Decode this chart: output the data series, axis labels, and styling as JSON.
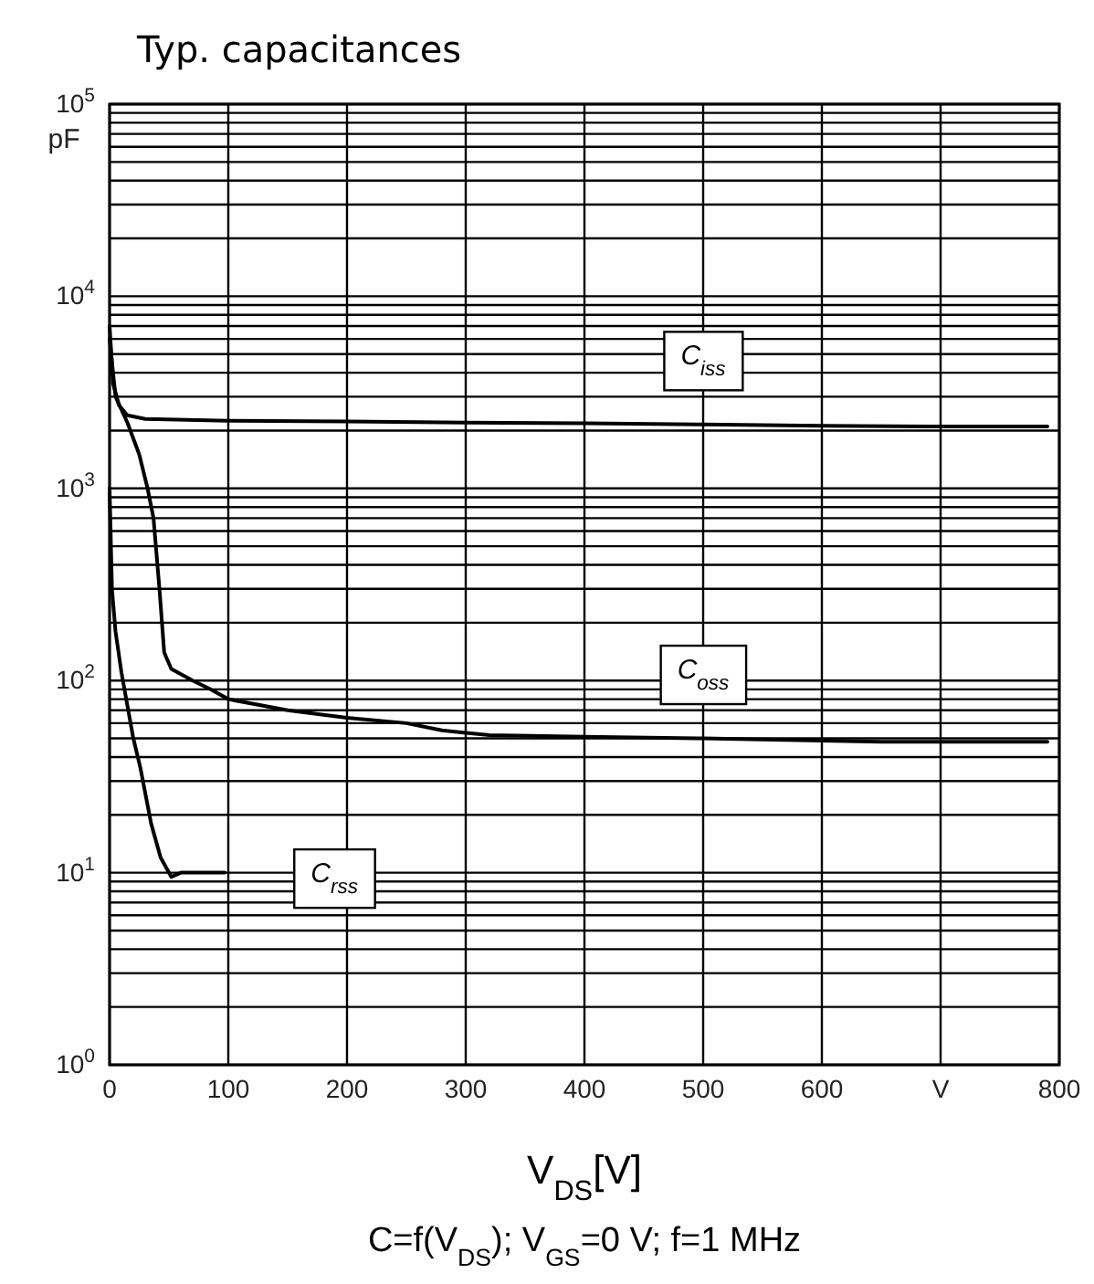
{
  "chart_data": {
    "type": "line",
    "title": "Typ. capacitances",
    "ylabel": "pF",
    "xlabel": "V$_{DS}$[V]",
    "subtitle": "C=f(V$_{DS}$); V$_{GS}$=0 V; f=1 MHz",
    "log": "y",
    "grid": true,
    "line_style": "solid",
    "marker": "none",
    "xlim": [
      0,
      800
    ],
    "xticks": [
      0,
      100,
      200,
      300,
      400,
      500,
      600,
      {
        "value": 700,
        "label": "V"
      },
      800
    ],
    "ylim": [
      1,
      100000
    ],
    "yticks": [
      {
        "value": 1,
        "label": "10$^{0}$"
      },
      {
        "value": 2,
        "label": null
      },
      {
        "value": 3,
        "label": null
      },
      {
        "value": 4,
        "label": null
      },
      {
        "value": 5,
        "label": null
      },
      {
        "value": 6,
        "label": null
      },
      {
        "value": 7,
        "label": null
      },
      {
        "value": 8,
        "label": null
      },
      {
        "value": 9,
        "label": null
      },
      {
        "value": 10,
        "label": "10$^{1}$"
      },
      {
        "value": 20,
        "label": null
      },
      {
        "value": 30,
        "label": null
      },
      {
        "value": 40,
        "label": null
      },
      {
        "value": 50,
        "label": null
      },
      {
        "value": 60,
        "label": null
      },
      {
        "value": 70,
        "label": null
      },
      {
        "value": 80,
        "label": null
      },
      {
        "value": 90,
        "label": null
      },
      {
        "value": 100,
        "label": "10$^{2}$"
      },
      {
        "value": 200,
        "label": null
      },
      {
        "value": 300,
        "label": null
      },
      {
        "value": 400,
        "label": null
      },
      {
        "value": 500,
        "label": null
      },
      {
        "value": 600,
        "label": null
      },
      {
        "value": 700,
        "label": null
      },
      {
        "value": 800,
        "label": null
      },
      {
        "value": 900,
        "label": null
      },
      {
        "value": 1000,
        "label": "10$^{3}$"
      },
      {
        "value": 2000,
        "label": null
      },
      {
        "value": 3000,
        "label": null
      },
      {
        "value": 4000,
        "label": null
      },
      {
        "value": 5000,
        "label": null
      },
      {
        "value": 6000,
        "label": null
      },
      {
        "value": 7000,
        "label": null
      },
      {
        "value": 8000,
        "label": null
      },
      {
        "value": 9000,
        "label": null
      },
      {
        "value": 10000,
        "label": "10$^{4}$"
      },
      {
        "value": 20000,
        "label": null
      },
      {
        "value": 30000,
        "label": null
      },
      {
        "value": 40000,
        "label": null
      },
      {
        "value": 50000,
        "label": null
      },
      {
        "value": 60000,
        "label": null
      },
      {
        "value": 70000,
        "label": null
      },
      {
        "value": 80000,
        "label": null
      },
      {
        "value": 90000,
        "label": null
      },
      {
        "value": 100000,
        "label": "10$^{5}$"
      }
    ],
    "series": [
      {
        "name": "C$_{iss}$",
        "color": "#000000",
        "x": [
          0,
          3,
          8,
          15,
          30,
          100,
          200,
          300,
          400,
          500,
          600,
          700,
          790
        ],
        "values": [
          7000,
          3500,
          2700,
          2400,
          2300,
          2250,
          2230,
          2200,
          2180,
          2150,
          2120,
          2100,
          2100
        ]
      },
      {
        "name": "C$_{oss}$",
        "color": "#000000",
        "x": [
          0,
          5,
          15,
          25,
          32,
          37,
          42,
          46,
          52,
          70,
          85,
          100,
          150,
          200,
          250,
          280,
          320,
          400,
          500,
          650,
          790
        ],
        "values": [
          6000,
          3000,
          2200,
          1500,
          1000,
          700,
          300,
          140,
          115,
          100,
          90,
          80,
          70,
          64,
          60,
          55,
          52,
          51,
          50,
          48,
          48
        ]
      },
      {
        "name": "C$_{rss}$",
        "color": "#000000",
        "x": [
          0,
          2,
          5,
          10,
          20,
          26,
          35,
          43,
          52,
          60,
          80,
          97
        ],
        "values": [
          1000,
          300,
          180,
          110,
          50,
          35,
          18,
          12,
          9.5,
          10,
          10,
          10
        ]
      }
    ]
  }
}
